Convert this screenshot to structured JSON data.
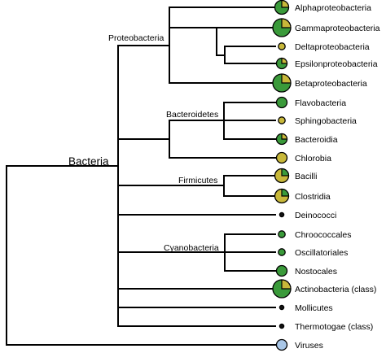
{
  "root_label": "Bacteria",
  "colors": {
    "green": "#3a9a3a",
    "olive": "#c8b83a",
    "blue": "#a9c7e8",
    "dark": "#111111"
  },
  "clades": [
    {
      "id": "proteobacteria",
      "label": "Proteobacteria"
    },
    {
      "id": "bacteroidetes",
      "label": "Bacteroidetes"
    },
    {
      "id": "firmicutes",
      "label": "Firmicutes"
    },
    {
      "id": "cyanobacteria",
      "label": "Cyanobacteria"
    }
  ],
  "leaves": [
    {
      "label": "Alphaproteobacteria",
      "size": "large",
      "fill": "green",
      "olive_fraction": 0.25
    },
    {
      "label": "Gammaproteobacteria",
      "size": "xlarge",
      "fill": "green",
      "olive_fraction": 0.25
    },
    {
      "label": "Deltaproteobacteria",
      "size": "small",
      "fill": "olive",
      "olive_fraction": 0
    },
    {
      "label": "Epsilonproteobacteria",
      "size": "medium",
      "fill": "green",
      "olive_fraction": 0.25
    },
    {
      "label": "Betaproteobacteria",
      "size": "xlarge",
      "fill": "green",
      "olive_fraction": 0.25
    },
    {
      "label": "Flavobacteria",
      "size": "medium",
      "fill": "green",
      "olive_fraction": 0
    },
    {
      "label": "Sphingobacteria",
      "size": "small",
      "fill": "olive",
      "olive_fraction": 0
    },
    {
      "label": "Bacteroidia",
      "size": "medium",
      "fill": "green",
      "olive_fraction": 0.25
    },
    {
      "label": "Chlorobia",
      "size": "medium",
      "fill": "olive",
      "olive_fraction": 0
    },
    {
      "label": "Bacilli",
      "size": "large",
      "fill": "olive",
      "olive_fraction": 0.25
    },
    {
      "label": "Clostridia",
      "size": "large",
      "fill": "olive",
      "olive_fraction": 0.25
    },
    {
      "label": "Deinococci",
      "size": "tiny",
      "fill": "dark",
      "olive_fraction": 0
    },
    {
      "label": "Chroococcales",
      "size": "small",
      "fill": "green",
      "olive_fraction": 0
    },
    {
      "label": "Oscillatoriales",
      "size": "small",
      "fill": "green",
      "olive_fraction": 0
    },
    {
      "label": "Nostocales",
      "size": "medium",
      "fill": "green",
      "olive_fraction": 0
    },
    {
      "label": "Actinobacteria (class)",
      "size": "xlarge",
      "fill": "green",
      "olive_fraction": 0.25
    },
    {
      "label": "Mollicutes",
      "size": "tiny",
      "fill": "dark",
      "olive_fraction": 0
    },
    {
      "label": "Thermotogae (class)",
      "size": "tiny",
      "fill": "dark",
      "olive_fraction": 0
    },
    {
      "label": "Viruses",
      "size": "medium",
      "fill": "blue",
      "olive_fraction": 0
    }
  ]
}
